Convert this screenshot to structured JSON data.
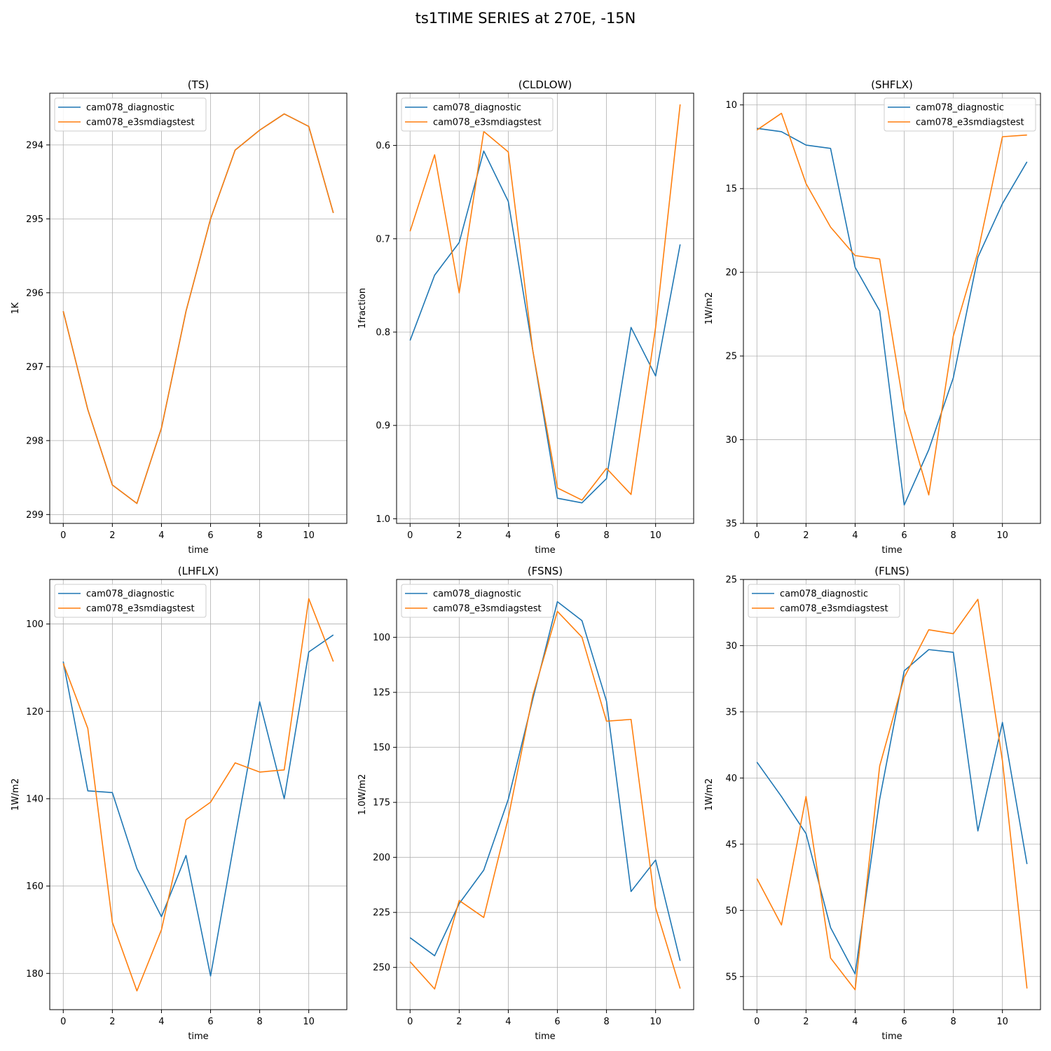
{
  "suptitle": "ts1TIME SERIES at 270E, -15N",
  "colors": {
    "diagnostic": "#1f77b4",
    "e3smdiagstest": "#ff7f0e",
    "grid": "#b0b0b0"
  },
  "chart_data": [
    {
      "type": "line",
      "title": "(TS)",
      "xlabel": "time",
      "ylabel": "1K",
      "x": [
        0,
        1,
        2,
        3,
        4,
        5,
        6,
        7,
        8,
        9,
        10,
        11
      ],
      "xlim": [
        -0.55,
        11.55
      ],
      "xticks": [
        0,
        2,
        4,
        6,
        8,
        10
      ],
      "ylim": [
        299.12,
        293.3
      ],
      "yinverted": true,
      "yticks": [
        294,
        295,
        296,
        297,
        298,
        299
      ],
      "legend": "upper left",
      "grid": true,
      "series": [
        {
          "name": "cam078_diagnostic",
          "values": [
            296.25,
            297.58,
            298.6,
            298.85,
            297.83,
            296.25,
            295.0,
            294.07,
            293.8,
            293.58,
            293.75,
            294.92
          ]
        },
        {
          "name": "cam078_e3smdiagstest",
          "values": [
            296.25,
            297.58,
            298.6,
            298.85,
            297.83,
            296.25,
            295.0,
            294.07,
            293.8,
            293.58,
            293.75,
            294.92
          ]
        }
      ]
    },
    {
      "type": "line",
      "title": "(CLDLOW)",
      "xlabel": "time",
      "ylabel": "1fraction",
      "x": [
        0,
        1,
        2,
        3,
        4,
        5,
        6,
        7,
        8,
        9,
        10,
        11
      ],
      "xlim": [
        -0.55,
        11.55
      ],
      "xticks": [
        0,
        2,
        4,
        6,
        8,
        10
      ],
      "ylim": [
        1.005,
        0.544
      ],
      "yinverted": true,
      "yticks": [
        0.6,
        0.7,
        0.8,
        0.9,
        1.0
      ],
      "legend": "upper left",
      "grid": true,
      "series": [
        {
          "name": "cam078_diagnostic",
          "values": [
            0.809,
            0.739,
            0.704,
            0.606,
            0.66,
            0.82,
            0.978,
            0.983,
            0.957,
            0.795,
            0.847,
            0.706
          ]
        },
        {
          "name": "cam078_e3smdiagstest",
          "values": [
            0.692,
            0.61,
            0.758,
            0.585,
            0.607,
            0.82,
            0.967,
            0.98,
            0.946,
            0.974,
            0.795,
            0.556
          ]
        }
      ]
    },
    {
      "type": "line",
      "title": "(SHFLX)",
      "xlabel": "time",
      "ylabel": "1W/m2",
      "x": [
        0,
        1,
        2,
        3,
        4,
        5,
        6,
        7,
        8,
        9,
        10,
        11
      ],
      "xlim": [
        -0.55,
        11.55
      ],
      "xticks": [
        0,
        2,
        4,
        6,
        8,
        10
      ],
      "ylim": [
        35.0,
        9.3
      ],
      "yinverted": true,
      "yticks": [
        10,
        15,
        20,
        25,
        30,
        35
      ],
      "legend": "upper right",
      "grid": true,
      "series": [
        {
          "name": "cam078_diagnostic",
          "values": [
            11.4,
            11.6,
            12.4,
            12.6,
            19.7,
            22.3,
            33.9,
            30.6,
            26.3,
            19.1,
            15.9,
            13.4
          ]
        },
        {
          "name": "cam078_e3smdiagstest",
          "values": [
            11.5,
            10.5,
            14.7,
            17.3,
            19.0,
            19.2,
            28.2,
            33.3,
            23.8,
            18.8,
            11.9,
            11.8
          ]
        }
      ]
    },
    {
      "type": "line",
      "title": "(LHFLX)",
      "xlabel": "time",
      "ylabel": "1W/m2",
      "x": [
        0,
        1,
        2,
        3,
        4,
        5,
        6,
        7,
        8,
        9,
        10,
        11
      ],
      "xlim": [
        -0.55,
        11.55
      ],
      "xticks": [
        0,
        2,
        4,
        6,
        8,
        10
      ],
      "ylim": [
        188.3,
        89.8
      ],
      "yinverted": true,
      "yticks": [
        100,
        120,
        140,
        160,
        180
      ],
      "legend": "upper left",
      "grid": true,
      "series": [
        {
          "name": "cam078_diagnostic",
          "values": [
            108.6,
            138.2,
            138.6,
            156.0,
            167.0,
            153.0,
            180.6,
            148.8,
            117.8,
            140.0,
            106.4,
            102.5
          ]
        },
        {
          "name": "cam078_e3smdiagstest",
          "values": [
            109.0,
            123.9,
            168.3,
            184.0,
            170.0,
            144.8,
            140.8,
            131.8,
            133.9,
            133.4,
            94.2,
            108.6
          ]
        }
      ]
    },
    {
      "type": "line",
      "title": "(FSNS)",
      "xlabel": "time",
      "ylabel": "1.0W/m2",
      "x": [
        0,
        1,
        2,
        3,
        4,
        5,
        6,
        7,
        8,
        9,
        10,
        11
      ],
      "xlim": [
        -0.55,
        11.55
      ],
      "xticks": [
        0,
        2,
        4,
        6,
        8,
        10
      ],
      "ylim": [
        269.2,
        73.7
      ],
      "yinverted": true,
      "yticks": [
        100,
        125,
        150,
        175,
        200,
        225,
        250
      ],
      "legend": "upper left",
      "grid": true,
      "series": [
        {
          "name": "cam078_diagnostic",
          "values": [
            236.5,
            244.7,
            221.0,
            205.8,
            173.6,
            128.0,
            83.8,
            92.4,
            129.0,
            215.5,
            201.2,
            247.0
          ]
        },
        {
          "name": "cam078_e3smdiagstest",
          "values": [
            247.4,
            259.8,
            219.6,
            227.3,
            182.0,
            126.3,
            88.2,
            99.9,
            138.1,
            137.3,
            222.9,
            259.6
          ]
        }
      ]
    },
    {
      "type": "line",
      "title": "(FLNS)",
      "xlabel": "time",
      "ylabel": "1W/m2",
      "x": [
        0,
        1,
        2,
        3,
        4,
        5,
        6,
        7,
        8,
        9,
        10,
        11
      ],
      "xlim": [
        -0.55,
        11.55
      ],
      "xticks": [
        0,
        2,
        4,
        6,
        8,
        10
      ],
      "ylim": [
        57.5,
        25.0
      ],
      "yinverted": true,
      "yticks": [
        25,
        30,
        35,
        40,
        45,
        50,
        55
      ],
      "legend": "upper left",
      "grid": true,
      "series": [
        {
          "name": "cam078_diagnostic",
          "values": [
            38.8,
            41.4,
            44.2,
            51.3,
            54.8,
            41.6,
            31.9,
            30.3,
            30.5,
            44.0,
            35.8,
            46.5
          ]
        },
        {
          "name": "cam078_e3smdiagstest",
          "values": [
            47.6,
            51.1,
            41.4,
            53.6,
            56.0,
            39.1,
            32.4,
            28.8,
            29.1,
            26.5,
            38.7,
            55.9
          ]
        }
      ]
    }
  ]
}
